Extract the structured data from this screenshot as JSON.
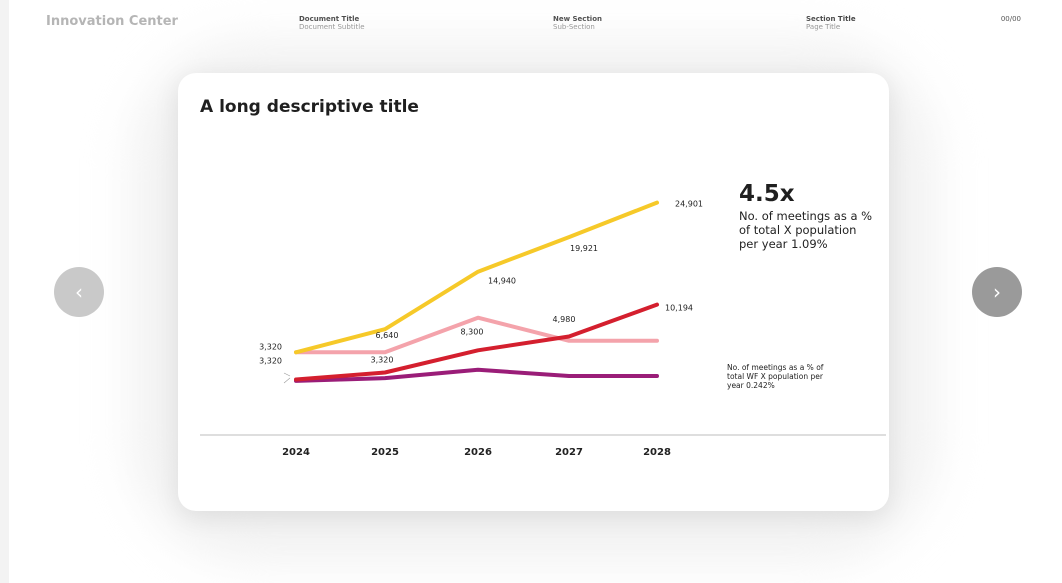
{
  "header": {
    "brand": "Innovation Center",
    "document_title": "Document Title",
    "document_subtitle": "Document Subtitle",
    "section": "New Section",
    "sub_section": "Sub-Section",
    "section_title": "Section Title",
    "page_title": "Page Title",
    "page_number": "00/00"
  },
  "card": {
    "title": "A long descriptive title"
  },
  "colors": {
    "yellow": "#f6c929",
    "pink": "#f4a3ab",
    "red": "#d41f2e",
    "purple": "#9a1d78"
  },
  "chart_data": {
    "type": "line",
    "categories": [
      "2024",
      "2025",
      "2026",
      "2027",
      "2028"
    ],
    "series": [
      {
        "color": "#f6c929",
        "values": [
          3320,
          6640,
          14940,
          19921,
          24901
        ],
        "labels": [
          "3,320",
          "6,640",
          "14,940",
          "19,921",
          "24,901"
        ]
      },
      {
        "color": "#f4a3ab",
        "values": [
          3320,
          3320,
          8300,
          4980,
          4980
        ],
        "labels": [
          "3,320",
          "3,320",
          "8,300",
          "4,980",
          ""
        ]
      },
      {
        "color": "#d41f2e",
        "values": [
          -600,
          400,
          3600,
          5600,
          10194
        ],
        "labels": [
          "",
          "",
          "",
          "",
          "10,194"
        ]
      },
      {
        "color": "#9a1d78",
        "values": [
          -800,
          -400,
          800,
          -100,
          -100
        ],
        "labels": [
          "",
          "",
          "",
          "",
          ""
        ]
      }
    ],
    "ylim": [
      -5000,
      27000
    ],
    "annotations": {
      "big_value": "4.5x",
      "big_description": "No. of meetings as a % of total X population per year 1.09%",
      "small_description": "No. of meetings as a % of total WF X population per year 0.242%"
    }
  }
}
